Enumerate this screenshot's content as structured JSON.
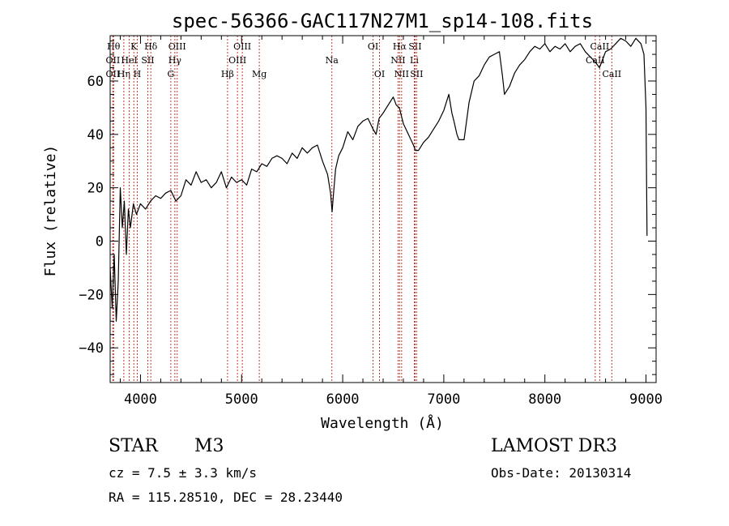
{
  "chart_data": {
    "type": "line",
    "title": "spec-56366-GAC117N27M1_sp14-108.fits",
    "xlabel": "Wavelength (Å)",
    "ylabel": "Flux (relative)",
    "xlim": [
      3700,
      9100
    ],
    "ylim": [
      -53,
      77
    ],
    "xticks": [
      4000,
      5000,
      6000,
      7000,
      8000,
      9000
    ],
    "yticks": [
      -40,
      -20,
      0,
      20,
      40,
      60
    ],
    "grid": false,
    "series": [
      {
        "name": "spectrum",
        "x": [
          3700,
          3720,
          3740,
          3760,
          3780,
          3800,
          3820,
          3840,
          3860,
          3880,
          3900,
          3930,
          3960,
          4000,
          4050,
          4100,
          4150,
          4200,
          4250,
          4300,
          4350,
          4400,
          4450,
          4500,
          4550,
          4600,
          4650,
          4700,
          4750,
          4800,
          4850,
          4900,
          4950,
          5000,
          5050,
          5100,
          5150,
          5200,
          5250,
          5300,
          5350,
          5400,
          5450,
          5500,
          5550,
          5600,
          5650,
          5700,
          5750,
          5800,
          5850,
          5880,
          5895,
          5910,
          5930,
          5960,
          6000,
          6050,
          6100,
          6150,
          6200,
          6250,
          6300,
          6330,
          6360,
          6400,
          6450,
          6500,
          6530,
          6560,
          6600,
          6650,
          6700,
          6720,
          6750,
          6800,
          6850,
          6900,
          6950,
          7000,
          7050,
          7080,
          7100,
          7130,
          7150,
          7200,
          7250,
          7300,
          7350,
          7400,
          7450,
          7500,
          7550,
          7580,
          7600,
          7650,
          7700,
          7750,
          7800,
          7850,
          7900,
          7950,
          8000,
          8050,
          8100,
          8150,
          8200,
          8250,
          8300,
          8350,
          8400,
          8450,
          8500,
          8540,
          8560,
          8600,
          8650,
          8700,
          8750,
          8800,
          8850,
          8900,
          8950,
          8980,
          9000,
          9010
        ],
        "y": [
          -10,
          -25,
          -5,
          -30,
          -15,
          20,
          5,
          15,
          -5,
          12,
          5,
          14,
          10,
          14,
          12,
          15,
          17,
          16,
          18,
          19,
          15,
          17,
          23,
          21,
          26,
          22,
          23,
          20,
          22,
          26,
          20,
          24,
          22,
          23,
          21,
          27,
          26,
          29,
          28,
          31,
          32,
          31,
          29,
          33,
          31,
          35,
          33,
          35,
          36,
          30,
          25,
          18,
          11,
          18,
          27,
          32,
          35,
          41,
          38,
          43,
          45,
          46,
          42,
          40,
          46,
          48,
          51,
          54,
          51,
          50,
          44,
          40,
          36,
          34,
          34,
          37,
          39,
          42,
          45,
          49,
          55,
          48,
          45,
          40,
          38,
          38,
          52,
          60,
          62,
          66,
          69,
          70,
          71,
          62,
          55,
          58,
          63,
          66,
          68,
          71,
          73,
          72,
          74,
          71,
          73,
          72,
          74,
          71,
          73,
          74,
          71,
          69,
          67,
          65,
          67,
          71,
          72,
          74,
          76,
          75,
          73,
          76,
          74,
          70,
          50,
          2
        ]
      }
    ],
    "line_markers": [
      {
        "wavelength": 3734,
        "label": "Hθ",
        "row": 0
      },
      {
        "wavelength": 3727,
        "label": "OII",
        "row": 1
      },
      {
        "wavelength": 3727,
        "label": "OII",
        "row": 2
      },
      {
        "wavelength": 3835,
        "label": "Hη",
        "row": 2
      },
      {
        "wavelength": 3889,
        "label": "HeI",
        "row": 1
      },
      {
        "wavelength": 3934,
        "label": "K",
        "row": 0
      },
      {
        "wavelength": 3968,
        "label": "H",
        "row": 2
      },
      {
        "wavelength": 4072,
        "label": "SII",
        "row": 1
      },
      {
        "wavelength": 4102,
        "label": "Hδ",
        "row": 0
      },
      {
        "wavelength": 4300,
        "label": "G",
        "row": 2
      },
      {
        "wavelength": 4340,
        "label": "Hγ",
        "row": 1
      },
      {
        "wavelength": 4363,
        "label": "OIII",
        "row": 0
      },
      {
        "wavelength": 4861,
        "label": "Hβ",
        "row": 2
      },
      {
        "wavelength": 4959,
        "label": "OIII",
        "row": 1
      },
      {
        "wavelength": 5007,
        "label": "OIII",
        "row": 0
      },
      {
        "wavelength": 5175,
        "label": "Mg",
        "row": 2
      },
      {
        "wavelength": 5893,
        "label": "Na",
        "row": 1
      },
      {
        "wavelength": 6300,
        "label": "OI",
        "row": 0
      },
      {
        "wavelength": 6364,
        "label": "OI",
        "row": 2
      },
      {
        "wavelength": 6548,
        "label": "NII",
        "row": 1
      },
      {
        "wavelength": 6563,
        "label": "Hα",
        "row": 0
      },
      {
        "wavelength": 6583,
        "label": "NII",
        "row": 2
      },
      {
        "wavelength": 6708,
        "label": "Li",
        "row": 1
      },
      {
        "wavelength": 6716,
        "label": "SII",
        "row": 0
      },
      {
        "wavelength": 6731,
        "label": "SII",
        "row": 2
      },
      {
        "wavelength": 8498,
        "label": "CaII",
        "row": 1
      },
      {
        "wavelength": 8542,
        "label": "CaII",
        "row": 0
      },
      {
        "wavelength": 8662,
        "label": "CaII",
        "row": 2
      }
    ]
  },
  "info": {
    "class": "STAR",
    "subclass": "M3",
    "survey": "LAMOST DR3",
    "cz": "cz = 7.5 ± 3.3 km/s",
    "obs_date": "Obs-Date: 20130314",
    "coords": "RA = 115.28510, DEC =  28.23440"
  }
}
